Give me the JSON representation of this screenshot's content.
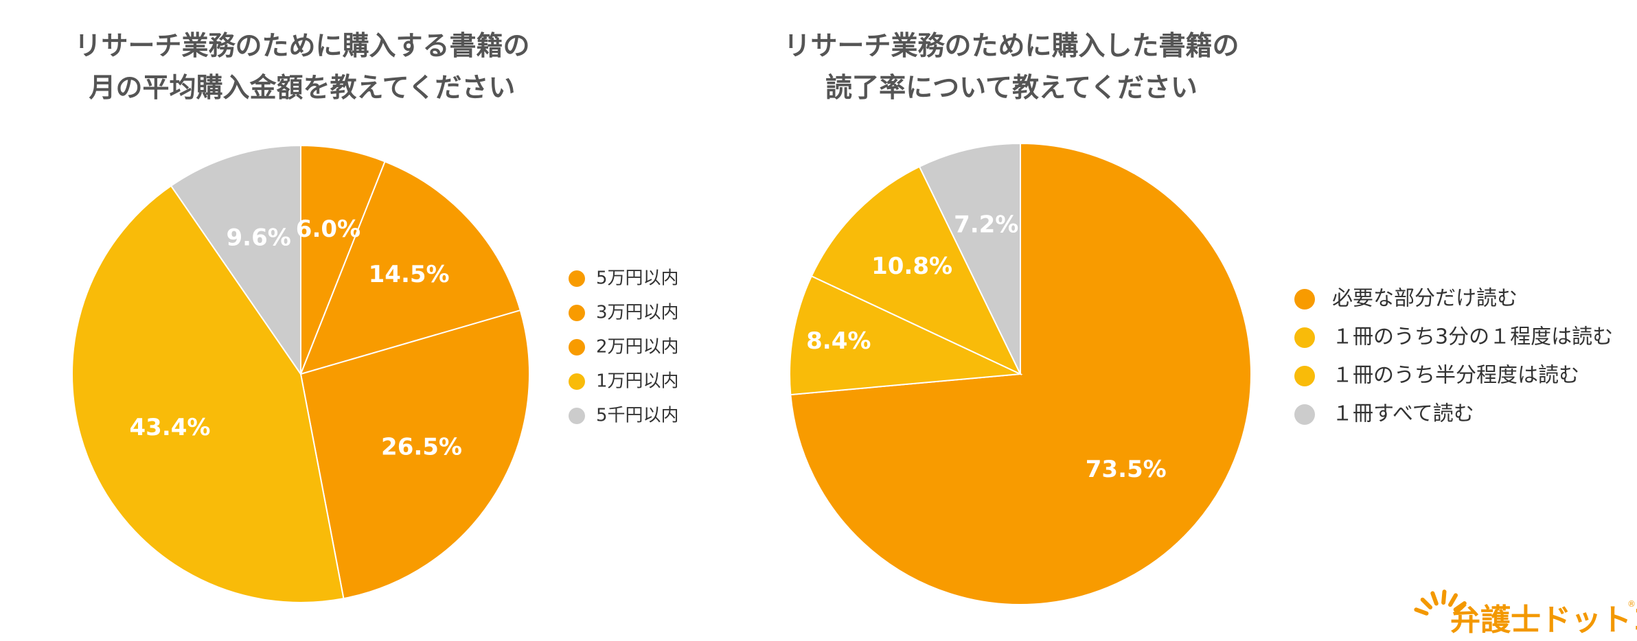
{
  "colors": {
    "orange": "#F89B00",
    "yellow": "#F9BB09",
    "gray": "#CCCCCC",
    "title": "#555555",
    "slice_text": "#FFFFFF",
    "brand": "#F39800"
  },
  "logo": {
    "text": "弁護士ドットコム",
    "mark": "®",
    "icon": "sun-burst-icon"
  },
  "chart_data": [
    {
      "type": "pie",
      "title": [
        "リサーチ業務のために購入する書籍の",
        "月の平均購入金額を教えてください"
      ],
      "start": "top",
      "direction": "clockwise",
      "legend_position": "right",
      "labels": [
        "5万円以内",
        "3万円以内",
        "2万円以内",
        "1万円以内",
        "5千円以内"
      ],
      "values": [
        6.0,
        14.5,
        26.5,
        43.4,
        9.6
      ],
      "value_labels": [
        "6.0%",
        "14.5%",
        "26.5%",
        "43.4%",
        "9.6%"
      ],
      "colors": [
        "#F89B00",
        "#F89B00",
        "#F89B00",
        "#F9BB09",
        "#CCCCCC"
      ]
    },
    {
      "type": "pie",
      "title": [
        "リサーチ業務のために購入した書籍の",
        "読了率について教えてください"
      ],
      "start": "top",
      "direction": "clockwise",
      "legend_position": "right",
      "labels": [
        "必要な部分だけ読む",
        "１冊のうち3分の１程度は読む",
        "１冊のうち半分程度は読む",
        "１冊すべて読む"
      ],
      "values": [
        73.5,
        8.4,
        10.8,
        7.2
      ],
      "value_labels": [
        "73.5%",
        "8.4%",
        "10.8%",
        "7.2%"
      ],
      "colors": [
        "#F89B00",
        "#F9BB09",
        "#F9BB09",
        "#CCCCCC"
      ]
    }
  ]
}
